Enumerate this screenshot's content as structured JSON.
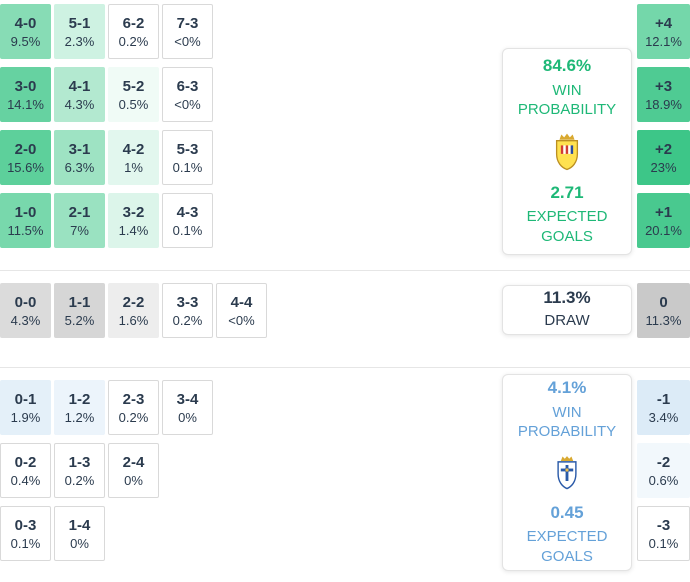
{
  "colors": {
    "home_accent": "#1eb877",
    "away_accent": "#64a1d8",
    "text": "#2b3b4e",
    "border": "#d9d9d9"
  },
  "chart_data": {
    "type": "heatmap",
    "description": "Predicted correct-score probability matrix with win/draw probabilities, goal margins and expected goals",
    "home": {
      "grid": [
        [
          {
            "score": "4-0",
            "pct": "9.5%",
            "bg": "#87dcb5"
          },
          {
            "score": "5-1",
            "pct": "2.3%",
            "bg": "#cef2e2"
          },
          {
            "score": "6-2",
            "pct": "0.2%"
          },
          {
            "score": "7-3",
            "pct": "<0%"
          }
        ],
        [
          {
            "score": "3-0",
            "pct": "14.1%",
            "bg": "#66d2a1"
          },
          {
            "score": "4-1",
            "pct": "4.3%",
            "bg": "#b3e9d0"
          },
          {
            "score": "5-2",
            "pct": "0.5%",
            "bg": "#f0fbf6"
          },
          {
            "score": "6-3",
            "pct": "<0%"
          }
        ],
        [
          {
            "score": "2-0",
            "pct": "15.6%",
            "bg": "#5dd09b"
          },
          {
            "score": "3-1",
            "pct": "6.3%",
            "bg": "#9ee3c3"
          },
          {
            "score": "4-2",
            "pct": "1%",
            "bg": "#e2f7ee"
          },
          {
            "score": "5-3",
            "pct": "0.1%"
          }
        ],
        [
          {
            "score": "1-0",
            "pct": "11.5%",
            "bg": "#78d8ac"
          },
          {
            "score": "2-1",
            "pct": "7%",
            "bg": "#9ae2c1"
          },
          {
            "score": "3-2",
            "pct": "1.4%",
            "bg": "#dcf5ea"
          },
          {
            "score": "4-3",
            "pct": "0.1%"
          }
        ]
      ],
      "margins": [
        {
          "label": "+4",
          "pct": "12.1%",
          "bg": "#74d7aa"
        },
        {
          "label": "+3",
          "pct": "18.9%",
          "bg": "#4fcb93"
        },
        {
          "label": "+2",
          "pct": "23%",
          "bg": "#3dc688"
        },
        {
          "label": "+1",
          "pct": "20.1%",
          "bg": "#49c98f"
        }
      ],
      "panel": {
        "probability": "84.6%",
        "prob_label_1": "WIN",
        "prob_label_2": "PROBABILITY",
        "expected": "2.71",
        "exp_label_1": "EXPECTED",
        "exp_label_2": "GOALS",
        "team_icon": "villarreal-crest"
      }
    },
    "draw": {
      "grid": [
        [
          {
            "score": "0-0",
            "pct": "4.3%",
            "bg": "#dbdbdb"
          },
          {
            "score": "1-1",
            "pct": "5.2%",
            "bg": "#d6d6d6"
          },
          {
            "score": "2-2",
            "pct": "1.6%",
            "bg": "#ededed"
          },
          {
            "score": "3-3",
            "pct": "0.2%"
          },
          {
            "score": "4-4",
            "pct": "<0%"
          }
        ]
      ],
      "margins": [
        {
          "label": "0",
          "pct": "11.3%",
          "bg": "#c9c9c9"
        }
      ],
      "panel": {
        "probability": "11.3%",
        "label": "DRAW"
      }
    },
    "away": {
      "grid": [
        [
          {
            "score": "0-1",
            "pct": "1.9%",
            "bg": "#e4f0f9"
          },
          {
            "score": "1-2",
            "pct": "1.2%",
            "bg": "#ecf4fb"
          },
          {
            "score": "2-3",
            "pct": "0.2%"
          },
          {
            "score": "3-4",
            "pct": "0%"
          }
        ],
        [
          {
            "score": "0-2",
            "pct": "0.4%"
          },
          {
            "score": "1-3",
            "pct": "0.2%"
          },
          {
            "score": "2-4",
            "pct": "0%"
          }
        ],
        [
          {
            "score": "0-3",
            "pct": "0.1%"
          },
          {
            "score": "1-4",
            "pct": "0%"
          }
        ]
      ],
      "margins": [
        {
          "label": "-1",
          "pct": "3.4%",
          "bg": "#dcebf7"
        },
        {
          "label": "-2",
          "pct": "0.6%",
          "bg": "#f2f8fc"
        },
        {
          "label": "-3",
          "pct": "0.1%"
        }
      ],
      "panel": {
        "probability": "4.1%",
        "prob_label_1": "WIN",
        "prob_label_2": "PROBABILITY",
        "expected": "0.45",
        "exp_label_1": "EXPECTED",
        "exp_label_2": "GOALS",
        "team_icon": "real-oviedo-crest"
      }
    }
  }
}
